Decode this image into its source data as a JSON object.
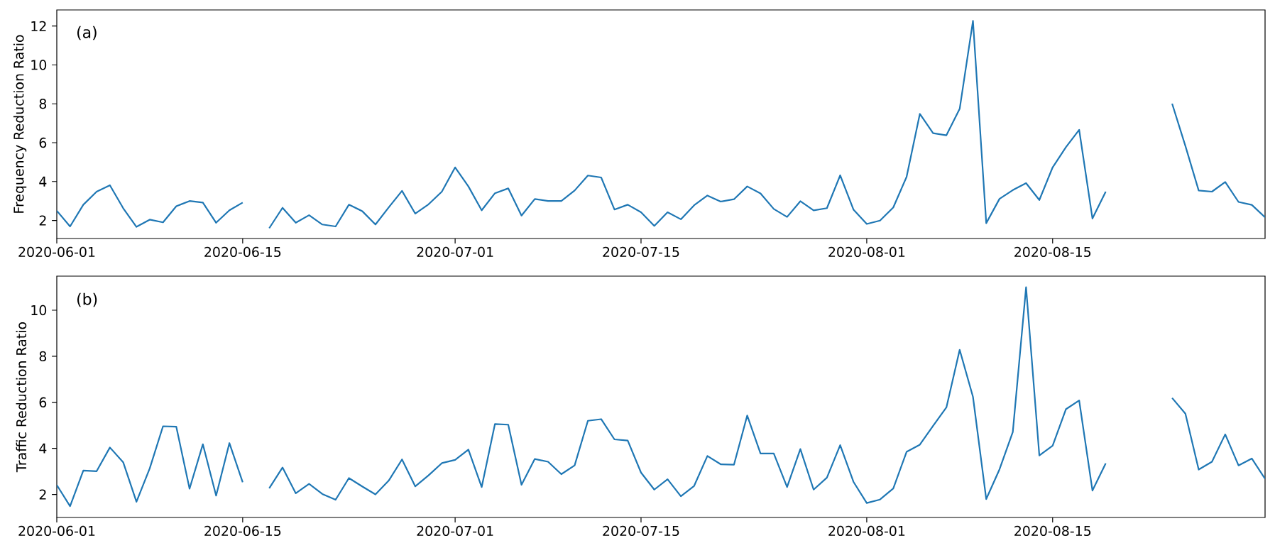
{
  "chart_data": [
    {
      "type": "line",
      "ylabel": "Frequency Reduction Ratio",
      "annotations": [
        "(a)"
      ],
      "color": "#1f77b4",
      "xlim": [
        "2020-06-01",
        "2020-08-31"
      ],
      "xticks": [
        "2020-06-01",
        "2020-06-15",
        "2020-07-01",
        "2020-07-15",
        "2020-08-01",
        "2020-08-15"
      ],
      "ylim": [
        1.07,
        12.83
      ],
      "yticks": [
        2,
        4,
        6,
        8,
        10,
        12
      ],
      "x": [
        "2020-06-01",
        "2020-06-02",
        "2020-06-03",
        "2020-06-04",
        "2020-06-05",
        "2020-06-06",
        "2020-06-07",
        "2020-06-08",
        "2020-06-09",
        "2020-06-10",
        "2020-06-11",
        "2020-06-12",
        "2020-06-13",
        "2020-06-14",
        "2020-06-15",
        "2020-06-16",
        "2020-06-17",
        "2020-06-18",
        "2020-06-19",
        "2020-06-20",
        "2020-06-21",
        "2020-06-22",
        "2020-06-23",
        "2020-06-24",
        "2020-06-25",
        "2020-06-26",
        "2020-06-27",
        "2020-06-28",
        "2020-06-29",
        "2020-06-30",
        "2020-07-01",
        "2020-07-02",
        "2020-07-03",
        "2020-07-04",
        "2020-07-05",
        "2020-07-06",
        "2020-07-07",
        "2020-07-08",
        "2020-07-09",
        "2020-07-10",
        "2020-07-11",
        "2020-07-12",
        "2020-07-13",
        "2020-07-14",
        "2020-07-15",
        "2020-07-16",
        "2020-07-17",
        "2020-07-18",
        "2020-07-19",
        "2020-07-20",
        "2020-07-21",
        "2020-07-22",
        "2020-07-23",
        "2020-07-24",
        "2020-07-25",
        "2020-07-26",
        "2020-07-27",
        "2020-07-28",
        "2020-07-29",
        "2020-07-30",
        "2020-07-31",
        "2020-08-01",
        "2020-08-02",
        "2020-08-03",
        "2020-08-04",
        "2020-08-05",
        "2020-08-06",
        "2020-08-07",
        "2020-08-08",
        "2020-08-09",
        "2020-08-10",
        "2020-08-11",
        "2020-08-12",
        "2020-08-13",
        "2020-08-14",
        "2020-08-15",
        "2020-08-16",
        "2020-08-17",
        "2020-08-18",
        "2020-08-19",
        "2020-08-20",
        "2020-08-21",
        "2020-08-22",
        "2020-08-23",
        "2020-08-24",
        "2020-08-25",
        "2020-08-26",
        "2020-08-27",
        "2020-08-28",
        "2020-08-29",
        "2020-08-30",
        "2020-08-31"
      ],
      "values": [
        2.5,
        1.69,
        2.81,
        3.48,
        3.81,
        2.63,
        1.67,
        2.04,
        1.9,
        2.73,
        3.0,
        2.92,
        1.88,
        2.52,
        2.92,
        null,
        1.6,
        2.65,
        1.88,
        2.27,
        1.79,
        1.69,
        2.81,
        2.48,
        1.79,
        2.67,
        3.52,
        2.35,
        2.83,
        3.48,
        4.73,
        3.75,
        2.52,
        3.4,
        3.65,
        2.25,
        3.1,
        3.0,
        3.0,
        3.54,
        4.31,
        4.21,
        2.56,
        2.81,
        2.42,
        1.72,
        2.42,
        2.06,
        2.78,
        3.28,
        2.97,
        3.09,
        3.75,
        3.39,
        2.59,
        2.18,
        2.99,
        2.52,
        2.63,
        4.32,
        2.56,
        1.82,
        1.99,
        2.67,
        4.24,
        7.48,
        6.49,
        6.38,
        7.74,
        12.27,
        1.86,
        3.11,
        3.56,
        3.92,
        3.05,
        4.73,
        5.77,
        6.66,
        2.1,
        3.48,
        null,
        null,
        null,
        null,
        8.01,
        5.83,
        3.54,
        3.48,
        3.98,
        2.95,
        2.8,
        2.16
      ]
    },
    {
      "type": "line",
      "ylabel": "Traffic Reduction Ratio",
      "annotations": [
        "(b)"
      ],
      "color": "#1f77b4",
      "xlim": [
        "2020-06-01",
        "2020-08-31"
      ],
      "xticks": [
        "2020-06-01",
        "2020-06-15",
        "2020-07-01",
        "2020-07-15",
        "2020-08-01",
        "2020-08-15"
      ],
      "ylim": [
        1.0,
        11.48
      ],
      "yticks": [
        2,
        4,
        6,
        8,
        10
      ],
      "x": [
        "2020-06-01",
        "2020-06-02",
        "2020-06-03",
        "2020-06-04",
        "2020-06-05",
        "2020-06-06",
        "2020-06-07",
        "2020-06-08",
        "2020-06-09",
        "2020-06-10",
        "2020-06-11",
        "2020-06-12",
        "2020-06-13",
        "2020-06-14",
        "2020-06-15",
        "2020-06-16",
        "2020-06-17",
        "2020-06-18",
        "2020-06-19",
        "2020-06-20",
        "2020-06-21",
        "2020-06-22",
        "2020-06-23",
        "2020-06-24",
        "2020-06-25",
        "2020-06-26",
        "2020-06-27",
        "2020-06-28",
        "2020-06-29",
        "2020-06-30",
        "2020-07-01",
        "2020-07-02",
        "2020-07-03",
        "2020-07-04",
        "2020-07-05",
        "2020-07-06",
        "2020-07-07",
        "2020-07-08",
        "2020-07-09",
        "2020-07-10",
        "2020-07-11",
        "2020-07-12",
        "2020-07-13",
        "2020-07-14",
        "2020-07-15",
        "2020-07-16",
        "2020-07-17",
        "2020-07-18",
        "2020-07-19",
        "2020-07-20",
        "2020-07-21",
        "2020-07-22",
        "2020-07-23",
        "2020-07-24",
        "2020-07-25",
        "2020-07-26",
        "2020-07-27",
        "2020-07-28",
        "2020-07-29",
        "2020-07-30",
        "2020-07-31",
        "2020-08-01",
        "2020-08-02",
        "2020-08-03",
        "2020-08-04",
        "2020-08-05",
        "2020-08-06",
        "2020-08-07",
        "2020-08-08",
        "2020-08-09",
        "2020-08-10",
        "2020-08-11",
        "2020-08-12",
        "2020-08-13",
        "2020-08-14",
        "2020-08-15",
        "2020-08-16",
        "2020-08-17",
        "2020-08-18",
        "2020-08-19",
        "2020-08-20",
        "2020-08-21",
        "2020-08-22",
        "2020-08-23",
        "2020-08-24",
        "2020-08-25",
        "2020-08-26",
        "2020-08-27",
        "2020-08-28",
        "2020-08-29",
        "2020-08-30",
        "2020-08-31"
      ],
      "values": [
        2.41,
        1.49,
        3.04,
        3.01,
        4.04,
        3.4,
        1.68,
        3.13,
        4.96,
        4.94,
        2.25,
        4.18,
        1.95,
        4.23,
        2.53,
        null,
        2.27,
        3.17,
        2.05,
        2.46,
        2.02,
        1.77,
        2.71,
        2.35,
        2.0,
        2.6,
        3.52,
        2.35,
        2.83,
        3.36,
        3.5,
        3.95,
        2.32,
        5.06,
        5.03,
        2.42,
        3.54,
        3.42,
        2.88,
        3.26,
        5.2,
        5.27,
        4.39,
        4.34,
        2.95,
        2.21,
        2.66,
        1.92,
        2.37,
        3.67,
        3.31,
        3.29,
        5.43,
        3.78,
        3.78,
        2.32,
        3.97,
        2.21,
        2.73,
        4.14,
        2.55,
        1.63,
        1.78,
        2.26,
        3.85,
        4.16,
        4.98,
        5.78,
        8.28,
        6.24,
        1.8,
        3.09,
        4.71,
        11.0,
        3.69,
        4.12,
        5.7,
        6.08,
        2.17,
        3.35,
        null,
        null,
        null,
        null,
        6.19,
        5.51,
        3.08,
        3.42,
        4.61,
        3.26,
        3.56,
        2.68
      ]
    }
  ]
}
